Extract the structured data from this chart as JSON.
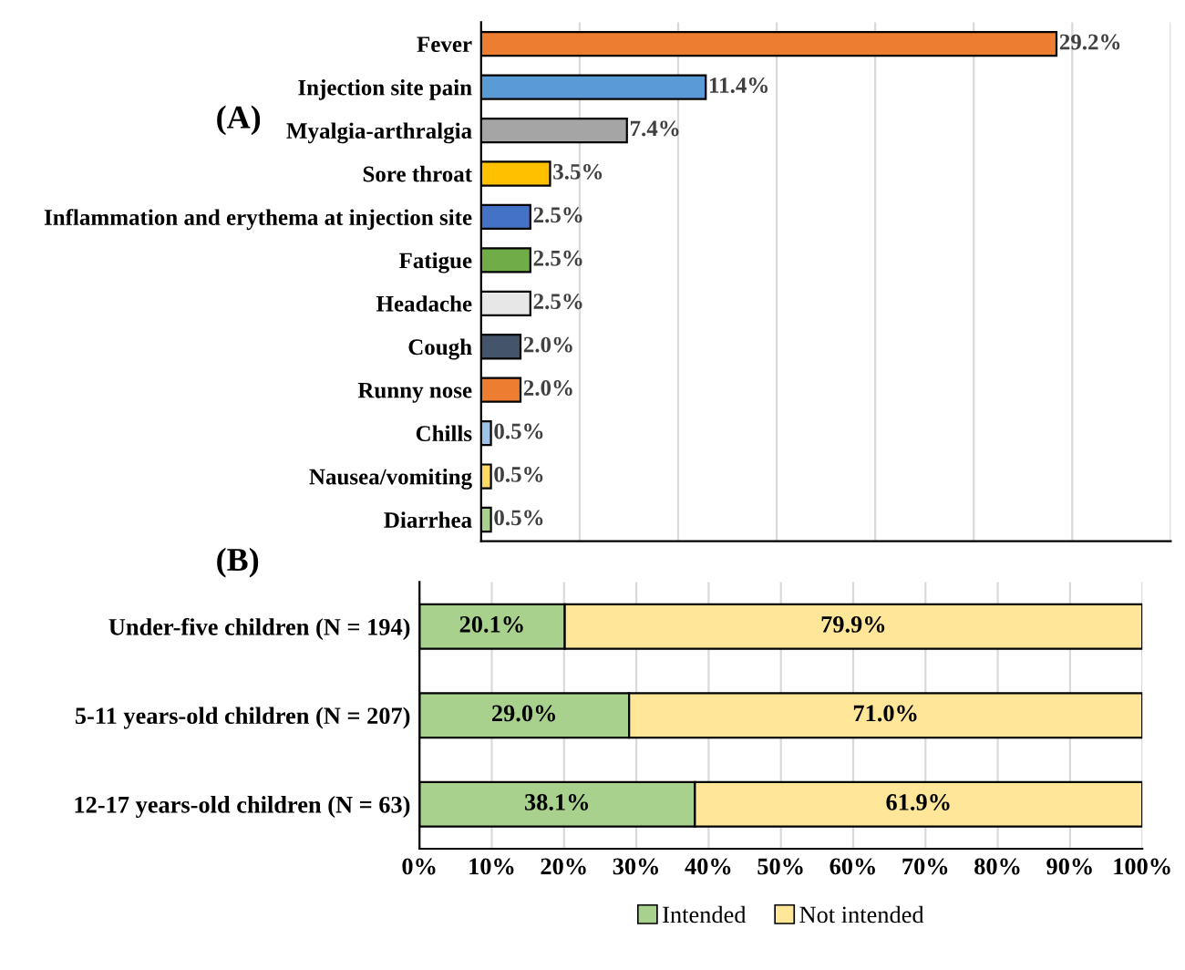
{
  "chart_data": [
    {
      "type": "bar",
      "orientation": "horizontal",
      "categories": [
        "Fever",
        "Injection site pain",
        "Myalgia-arthralgia",
        "Sore throat",
        "Inflammation and erythema at injection site",
        "Fatigue",
        "Headache",
        "Cough",
        "Runny nose",
        "Chills",
        "Nausea/vomiting",
        "Diarrhea"
      ],
      "values": [
        29.2,
        11.4,
        7.4,
        3.5,
        2.5,
        2.5,
        2.5,
        2.0,
        2.0,
        0.5,
        0.5,
        0.5
      ],
      "colors": [
        "#ed7d31",
        "#5b9bd5",
        "#a5a5a5",
        "#ffc000",
        "#4472c4",
        "#70ad47",
        "#e7e7e7",
        "#44546a",
        "#ed7d31",
        "#9dc3e6",
        "#ffd966",
        "#a9d18e"
      ],
      "value_labels": [
        "29.2%",
        "11.4%",
        "7.4%",
        "3.5%",
        "2.5%",
        "2.5%",
        "2.5%",
        "2.0%",
        "2.0%",
        "0.5%",
        "0.5%",
        "0.5%"
      ],
      "xlim": [
        0,
        35
      ],
      "xticks": [
        {
          "value": 0,
          "label": null
        },
        {
          "value": 5,
          "label": null
        },
        {
          "value": 10,
          "label": null
        },
        {
          "value": 15,
          "label": null
        },
        {
          "value": 20,
          "label": null
        },
        {
          "value": 25,
          "label": null
        },
        {
          "value": 30,
          "label": null
        },
        {
          "value": 35,
          "label": null
        }
      ],
      "grid": "x",
      "tick_labels": "y",
      "legend": false,
      "annotations": [
        "(A)"
      ]
    },
    {
      "type": "bar",
      "orientation": "horizontal",
      "stacked": true,
      "categories": [
        "Under-five children (N = 194)",
        "5-11 years-old children (N = 207)",
        "12-17 years-old children (N = 63)"
      ],
      "series": [
        {
          "name": "Intended",
          "color": "#a9d18e",
          "values": [
            20.1,
            29.0,
            38.1
          ],
          "value_labels": [
            "20.1%",
            "29.0%",
            "38.1%"
          ]
        },
        {
          "name": "Not intended",
          "color": "#ffe699",
          "values": [
            79.9,
            71.0,
            61.9
          ],
          "value_labels": [
            "79.9%",
            "71.0%",
            "61.9%"
          ]
        }
      ],
      "xlim": [
        0,
        100
      ],
      "xticks": [
        {
          "value": 0,
          "label": "0%"
        },
        {
          "value": 10,
          "label": "10%"
        },
        {
          "value": 20,
          "label": "20%"
        },
        {
          "value": 30,
          "label": "30%"
        },
        {
          "value": 40,
          "label": "40%"
        },
        {
          "value": 50,
          "label": "50%"
        },
        {
          "value": 60,
          "label": "60%"
        },
        {
          "value": 70,
          "label": "70%"
        },
        {
          "value": 80,
          "label": "80%"
        },
        {
          "value": 90,
          "label": "90%"
        },
        {
          "value": 100,
          "label": "100%"
        }
      ],
      "grid": "x",
      "legend": "bottom",
      "annotations": [
        "(B)"
      ]
    }
  ]
}
